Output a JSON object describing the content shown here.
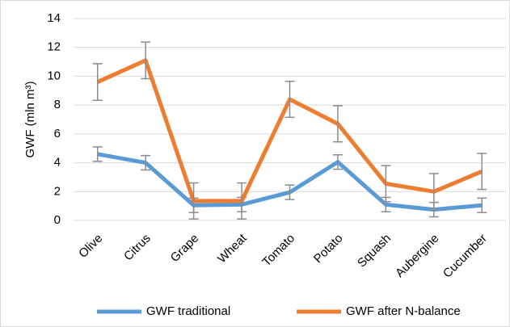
{
  "chart_data": {
    "type": "line",
    "categories": [
      "Olive",
      "Citrus",
      "Grape",
      "Wheat",
      "Tomato",
      "Potato",
      "Squash",
      "Aubergine",
      "Cucumber"
    ],
    "ylabel": "GWF (mln m³)",
    "ylim": [
      0,
      14
    ],
    "yticks": [
      0,
      2,
      4,
      6,
      8,
      10,
      12,
      14
    ],
    "grid": true,
    "legend": "bottom",
    "series": [
      {
        "name": "GWF traditional",
        "color": "#5b9bd5",
        "values": [
          4.6,
          4.0,
          1.05,
          1.1,
          1.95,
          4.05,
          1.1,
          0.75,
          1.05
        ],
        "errors": [
          0.5,
          0.5,
          0.5,
          0.5,
          0.5,
          0.5,
          0.5,
          0.5,
          0.5
        ]
      },
      {
        "name": "GWF after N-balance",
        "color": "#ed7d31",
        "values": [
          9.6,
          11.1,
          1.35,
          1.35,
          8.4,
          6.7,
          2.55,
          2.0,
          3.4
        ],
        "errors": [
          1.27,
          1.27,
          1.25,
          1.25,
          1.25,
          1.25,
          1.25,
          1.25,
          1.25
        ]
      }
    ]
  }
}
